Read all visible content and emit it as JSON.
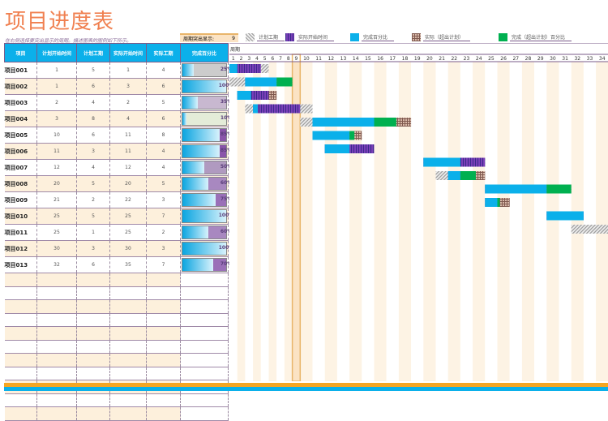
{
  "title": "项目进度表",
  "subtitle": "在右侧选择要突出显示的周期。描述图表的图例如下所示。",
  "highlight": {
    "label": "周期突出显示:",
    "value": "9"
  },
  "legend": [
    {
      "label": "计划工期",
      "color": "#bbbbbb",
      "pattern": "hatch"
    },
    {
      "label": "实际开始时间",
      "color": "#7a3fb8",
      "pattern": "stripe"
    },
    {
      "label": "完成百分比",
      "color": "#0bb0ea",
      "pattern": "solid"
    },
    {
      "label": "实际（超出计划）",
      "color": "#a07a6a",
      "pattern": "check"
    },
    {
      "label": "完成（超出计划）百分比",
      "color": "#00b050",
      "pattern": "solid"
    }
  ],
  "columns": [
    "项目",
    "计划开始时间",
    "计划工期",
    "实际开始时间",
    "实际工期",
    "完成百分比"
  ],
  "period_label": "周期",
  "periods": [
    1,
    2,
    3,
    4,
    5,
    6,
    7,
    8,
    9,
    10,
    11,
    12,
    13,
    14,
    15,
    16,
    17,
    18,
    19,
    20,
    21,
    22,
    23,
    24,
    25,
    26,
    27,
    28,
    29,
    30,
    31,
    32,
    33,
    34
  ],
  "rows": [
    {
      "name": "项目001",
      "plan_start": 1,
      "plan_dur": 5,
      "act_start": 1,
      "act_dur": 4,
      "pct": "25%"
    },
    {
      "name": "项目002",
      "plan_start": 1,
      "plan_dur": 6,
      "act_start": 3,
      "act_dur": 6,
      "pct": "100%"
    },
    {
      "name": "项目003",
      "plan_start": 2,
      "plan_dur": 4,
      "act_start": 2,
      "act_dur": 5,
      "pct": "35%"
    },
    {
      "name": "项目004",
      "plan_start": 3,
      "plan_dur": 8,
      "act_start": 4,
      "act_dur": 6,
      "pct": "10%"
    },
    {
      "name": "项目005",
      "plan_start": 10,
      "plan_dur": 6,
      "act_start": 11,
      "act_dur": 8,
      "pct": "85%"
    },
    {
      "name": "项目006",
      "plan_start": 11,
      "plan_dur": 3,
      "act_start": 11,
      "act_dur": 4,
      "pct": "85%"
    },
    {
      "name": "项目007",
      "plan_start": 12,
      "plan_dur": 4,
      "act_start": 12,
      "act_dur": 4,
      "pct": "50%"
    },
    {
      "name": "项目008",
      "plan_start": 20,
      "plan_dur": 5,
      "act_start": 20,
      "act_dur": 5,
      "pct": "60%"
    },
    {
      "name": "项目009",
      "plan_start": 21,
      "plan_dur": 2,
      "act_start": 22,
      "act_dur": 3,
      "pct": "75%"
    },
    {
      "name": "项目010",
      "plan_start": 25,
      "plan_dur": 5,
      "act_start": 25,
      "act_dur": 7,
      "pct": "100%"
    },
    {
      "name": "项目011",
      "plan_start": 25,
      "plan_dur": 1,
      "act_start": 25,
      "act_dur": 2,
      "pct": "60%"
    },
    {
      "name": "项目012",
      "plan_start": 30,
      "plan_dur": 3,
      "act_start": 30,
      "act_dur": 3,
      "pct": "100%"
    },
    {
      "name": "项目013",
      "plan_start": 32,
      "plan_dur": 6,
      "act_start": 35,
      "act_dur": 7,
      "pct": "70%"
    }
  ]
}
